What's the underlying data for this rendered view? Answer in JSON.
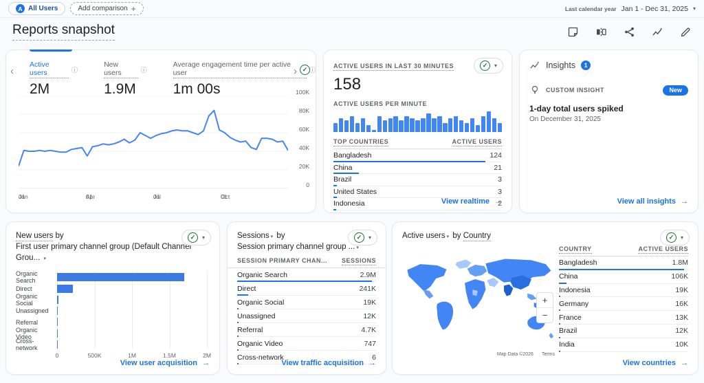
{
  "icons": {
    "caret": "▾",
    "arrow": "→",
    "check": "✓",
    "chevron_left": "‹",
    "chevron_right": "›",
    "plus": "+",
    "minus": "−",
    "info": "ⓘ"
  },
  "topbar": {
    "avatar_letter": "A",
    "all_users": "All Users",
    "add_comparison": "Add comparison",
    "date_label": "Last calendar year",
    "date_range": "Jan 1 - Dec 31, 2025"
  },
  "header": {
    "title": "Reports snapshot"
  },
  "overview": {
    "metrics": [
      {
        "label": "Active users",
        "value": "2M"
      },
      {
        "label": "New users",
        "value": "1.9M"
      },
      {
        "label": "Average engagement time per active user",
        "value": "1m 00s"
      }
    ]
  },
  "realtime": {
    "title": "ACTIVE USERS IN LAST 30 MINUTES",
    "value": "158",
    "per_minute_label": "ACTIVE USERS PER MINUTE",
    "link": "View realtime"
  },
  "insights": {
    "title": "Insights",
    "badge": "1",
    "custom_label": "CUSTOM INSIGHT",
    "new_badge": "New",
    "headline": "1-day total users spiked",
    "date": "On December 31, 2025",
    "link": "View all insights"
  },
  "new_users_card": {
    "metric": "New users",
    "by": "by",
    "dimension": "First user primary channel group (Default Channel Grou...",
    "link": "View user acquisition"
  },
  "sessions_card": {
    "metric": "Sessions",
    "by": "by",
    "dimension": "Session primary channel group ...",
    "link": "View traffic acquisition"
  },
  "countries_card": {
    "metric": "Active users",
    "by": "by",
    "dimension": "Country",
    "link": "View countries"
  },
  "map": {
    "attribution": "Map Data ©2026",
    "terms": "Terms"
  },
  "chart_data": [
    {
      "id": "active-users-trend",
      "type": "line",
      "title": "Active users over time",
      "x": [
        "01 Jan",
        "01 Apr",
        "01 Jul",
        "01 Oct"
      ],
      "yticks": [
        "100K",
        "80K",
        "60K",
        "40K",
        "20K",
        "0"
      ],
      "ylim": [
        0,
        100000
      ],
      "values_thousands": [
        24,
        41,
        40,
        40,
        41,
        40,
        41,
        40,
        39,
        39,
        42,
        43,
        44,
        35,
        45,
        46,
        48,
        47,
        48,
        50,
        53,
        49,
        52,
        60,
        57,
        54,
        57,
        59,
        60,
        62,
        63,
        62,
        62,
        60,
        58,
        62,
        78,
        84,
        63,
        60,
        55,
        52,
        50,
        51,
        44,
        42,
        54,
        54,
        53,
        50,
        51,
        41
      ]
    },
    {
      "id": "realtime-per-minute",
      "type": "bar",
      "title": "Active users per minute",
      "values": [
        4,
        6,
        5,
        7,
        4,
        6,
        3,
        1,
        7,
        5,
        6,
        7,
        5,
        7,
        6,
        5,
        6,
        8,
        6,
        7,
        4,
        6,
        7,
        5,
        4,
        6,
        3,
        7,
        9,
        6,
        4
      ]
    },
    {
      "id": "new-users-by-channel",
      "type": "bar",
      "orientation": "horizontal",
      "categories": [
        "Organic Search",
        "Direct",
        "Organic Social",
        "Unassigned",
        "Referral",
        "Organic Video",
        "Cross-network"
      ],
      "values": [
        1700000,
        210000,
        15000,
        8000,
        5000,
        3000,
        2000
      ],
      "xticks": [
        "0",
        "500K",
        "1M",
        "1.5M",
        "2M"
      ],
      "xlim": [
        0,
        2000000
      ]
    },
    {
      "id": "sessions-by-channel",
      "type": "table",
      "columns": [
        "SESSION PRIMARY CHAN...",
        "SESSIONS"
      ],
      "rows": [
        [
          "Organic Search",
          "2.9M"
        ],
        [
          "Direct",
          "241K"
        ],
        [
          "Organic Social",
          "19K"
        ],
        [
          "Unassigned",
          "12K"
        ],
        [
          "Referral",
          "4.7K"
        ],
        [
          "Organic Video",
          "747"
        ],
        [
          "Cross-network",
          "6"
        ]
      ],
      "values": [
        2900000,
        241000,
        19000,
        12000,
        4700,
        747,
        6
      ]
    },
    {
      "id": "realtime-top-countries",
      "type": "table",
      "columns": [
        "TOP COUNTRIES",
        "ACTIVE USERS"
      ],
      "rows": [
        [
          "Bangladesh",
          "124"
        ],
        [
          "China",
          "21"
        ],
        [
          "Brazil",
          "3"
        ],
        [
          "United States",
          "3"
        ],
        [
          "Indonesia",
          "2"
        ]
      ],
      "values": [
        124,
        21,
        3,
        3,
        2
      ]
    },
    {
      "id": "active-users-by-country",
      "type": "table",
      "columns": [
        "COUNTRY",
        "ACTIVE USERS"
      ],
      "rows": [
        [
          "Bangladesh",
          "1.8M"
        ],
        [
          "China",
          "106K"
        ],
        [
          "Indonesia",
          "19K"
        ],
        [
          "Germany",
          "16K"
        ],
        [
          "France",
          "13K"
        ],
        [
          "Brazil",
          "12K"
        ],
        [
          "India",
          "10K"
        ]
      ],
      "values": [
        1800000,
        106000,
        19000,
        16000,
        13000,
        12000,
        10000
      ]
    }
  ]
}
